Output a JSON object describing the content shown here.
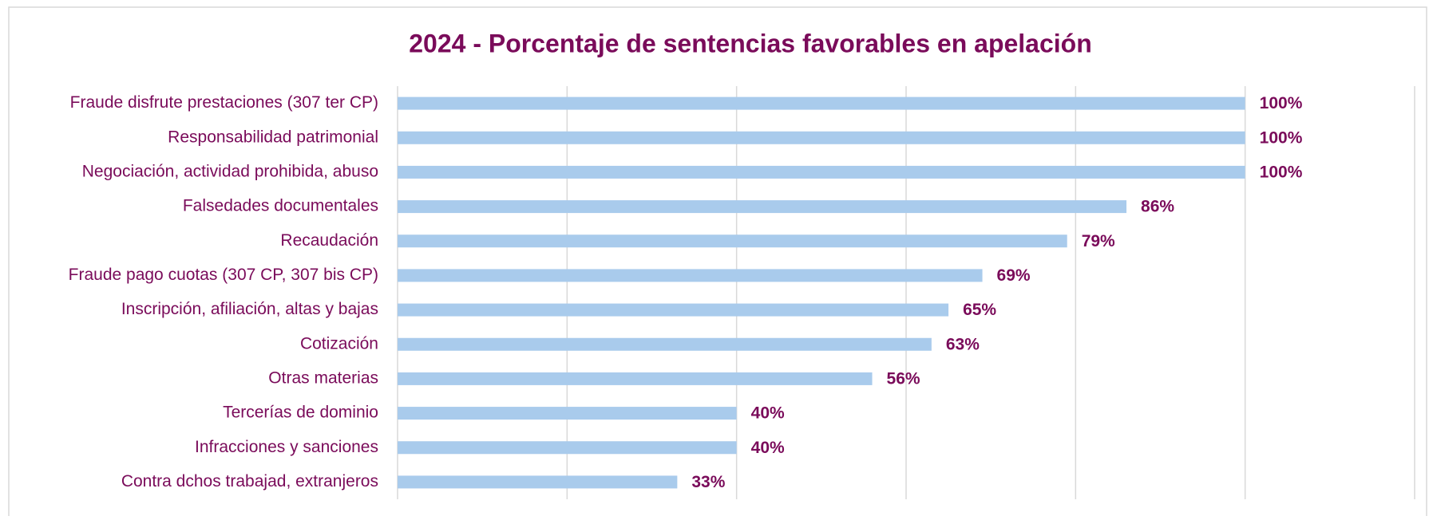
{
  "chart_data": {
    "type": "bar",
    "orientation": "horizontal",
    "title": "2024 - Porcentaje de sentencias favorables en apelación",
    "categories": [
      "Fraude disfrute prestaciones (307 ter CP)",
      "Responsabilidad patrimonial",
      "Negociación, actividad prohibida, abuso",
      "Falsedades documentales",
      "Recaudación",
      "Fraude pago cuotas (307 CP, 307 bis CP)",
      "Inscripción, afiliación, altas y bajas",
      "Cotización",
      "Otras materias",
      "Tercerías de dominio",
      "Infracciones y sanciones",
      "Contra dchos trabajad, extranjeros"
    ],
    "values": [
      100,
      100,
      100,
      86,
      79,
      69,
      65,
      63,
      56,
      40,
      40,
      33
    ],
    "value_labels": [
      "100%",
      "100%",
      "100%",
      "86%",
      "79%",
      "69%",
      "65%",
      "63%",
      "56%",
      "40%",
      "40%",
      "33%"
    ],
    "color": "#a9cbec",
    "xlim": [
      0,
      120
    ],
    "xticks": [
      0,
      20,
      40,
      60,
      80,
      100,
      120
    ],
    "grid": true
  }
}
